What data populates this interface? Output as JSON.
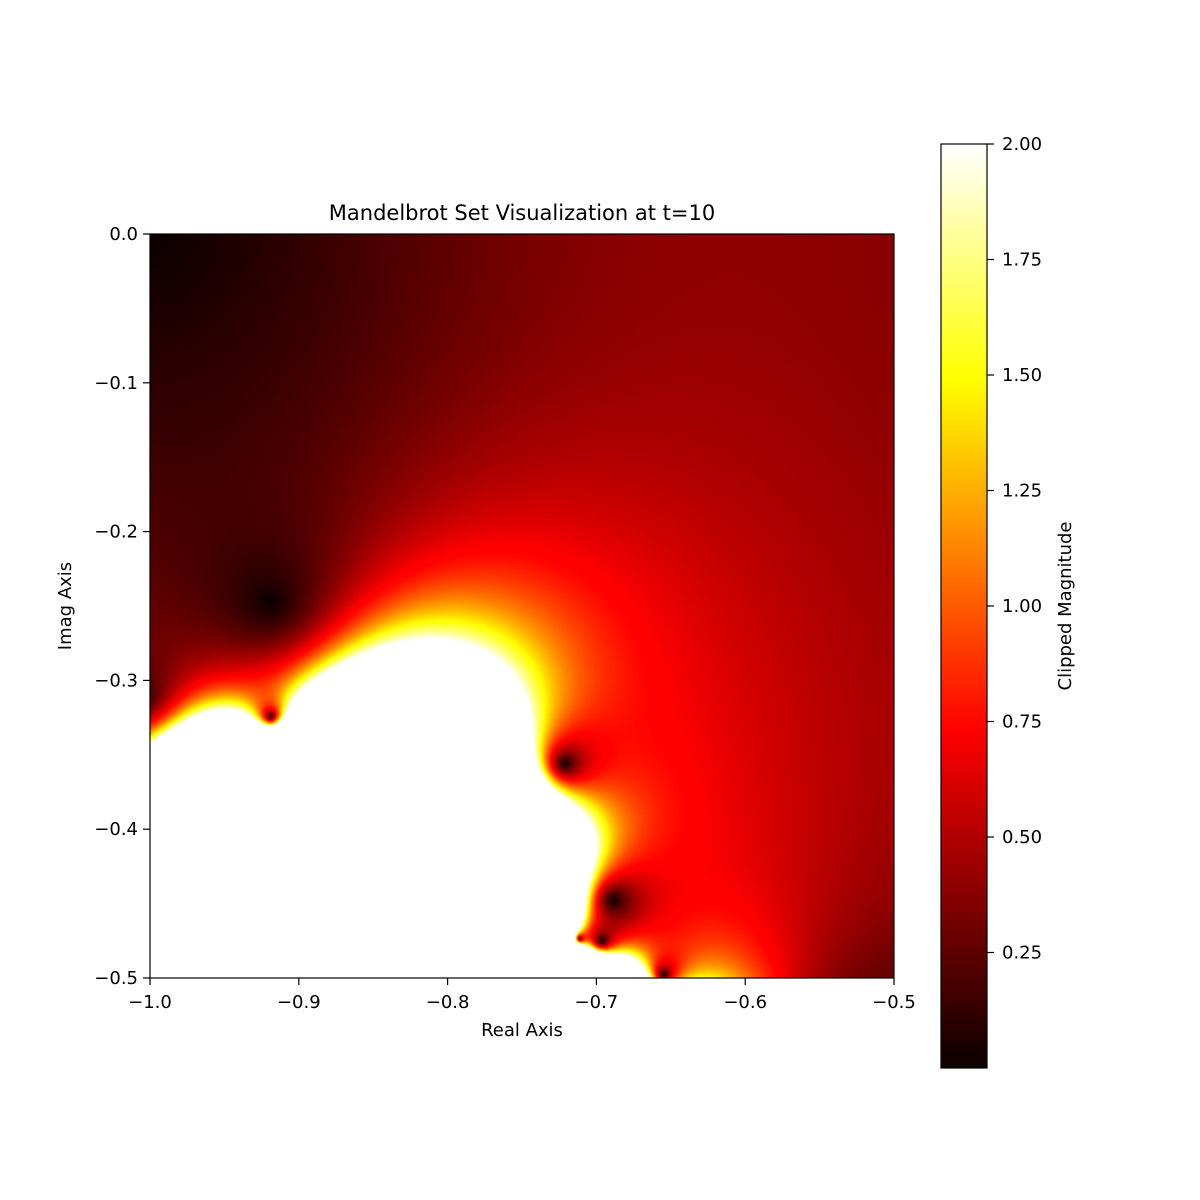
{
  "chart_data": {
    "type": "heatmap",
    "title": "Mandelbrot Set Visualization at t=10",
    "xlabel": "Real Axis",
    "ylabel": "Imag Axis",
    "xlim": [
      -1.0,
      -0.5
    ],
    "ylim": [
      -0.5,
      0.0
    ],
    "x_ticks": [
      {
        "value": -1.0,
        "label": "−1.0"
      },
      {
        "value": -0.9,
        "label": "−0.9"
      },
      {
        "value": -0.8,
        "label": "−0.8"
      },
      {
        "value": -0.7,
        "label": "−0.7"
      },
      {
        "value": -0.6,
        "label": "−0.6"
      },
      {
        "value": -0.5,
        "label": "−0.5"
      }
    ],
    "y_ticks": [
      {
        "value": 0.0,
        "label": "0.0"
      },
      {
        "value": -0.1,
        "label": "−0.1"
      },
      {
        "value": -0.2,
        "label": "−0.2"
      },
      {
        "value": -0.3,
        "label": "−0.3"
      },
      {
        "value": -0.4,
        "label": "−0.4"
      },
      {
        "value": -0.5,
        "label": "−0.5"
      }
    ],
    "colorbar": {
      "label": "Clipped Magnitude",
      "colormap": "hot",
      "range": [
        0.0,
        2.0
      ],
      "ticks": [
        {
          "value": 0.25,
          "label": "0.25"
        },
        {
          "value": 0.5,
          "label": "0.50"
        },
        {
          "value": 0.75,
          "label": "0.75"
        },
        {
          "value": 1.0,
          "label": "1.00"
        },
        {
          "value": 1.25,
          "label": "1.25"
        },
        {
          "value": 1.5,
          "label": "1.50"
        },
        {
          "value": 1.75,
          "label": "1.75"
        },
        {
          "value": 2.0,
          "label": "2.00"
        }
      ]
    },
    "field": {
      "function": "min(|z_10|, 2) for z_{n+1} = z_n^2 + c, z_0 = 0, c = x + iy",
      "iterations": 10,
      "clip": 2.0
    },
    "grid": false
  }
}
